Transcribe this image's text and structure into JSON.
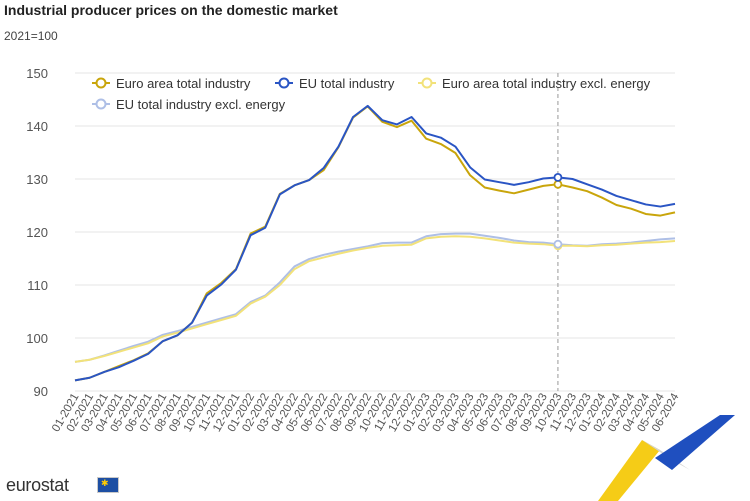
{
  "colors": {
    "euro_area_total": "#c9a50b",
    "eu_total": "#2a55c4",
    "euro_area_excl": "#f2e27a",
    "eu_excl": "#aebfe6",
    "grid": "#e6e6e6",
    "axis_text": "#555555",
    "brand_blue": "#1d4fa3",
    "brand_yellow": "#f5cc17"
  },
  "branding": {
    "logo_text": "eurostat",
    "flag_icon": "eu-flag-icon"
  },
  "chart_data": {
    "type": "line",
    "title": "Industrial producer prices on the domestic market",
    "subtitle": "2021=100",
    "xlabel": "",
    "ylabel": "",
    "ylim": [
      90,
      150
    ],
    "yticks": [
      90,
      100,
      110,
      120,
      130,
      140,
      150
    ],
    "grid": true,
    "legend_position": "top-left",
    "highlight_category": "10-2023",
    "categories": [
      "01-2021",
      "02-2021",
      "03-2021",
      "04-2021",
      "05-2021",
      "06-2021",
      "07-2021",
      "08-2021",
      "09-2021",
      "10-2021",
      "11-2021",
      "12-2021",
      "01-2022",
      "02-2022",
      "03-2022",
      "04-2022",
      "05-2022",
      "06-2022",
      "07-2022",
      "08-2022",
      "09-2022",
      "10-2022",
      "11-2022",
      "12-2022",
      "01-2023",
      "02-2023",
      "03-2023",
      "04-2023",
      "05-2023",
      "06-2023",
      "07-2023",
      "08-2023",
      "09-2023",
      "10-2023",
      "11-2023",
      "12-2023",
      "01-2024",
      "02-2024",
      "03-2024",
      "04-2024",
      "05-2024",
      "06-2024"
    ],
    "series": [
      {
        "name": "Euro area total industry",
        "color": "#c9a50b",
        "values": [
          92.0,
          92.5,
          93.6,
          94.7,
          95.8,
          97.1,
          99.4,
          100.5,
          102.9,
          108.4,
          110.4,
          113.0,
          119.7,
          121.0,
          127.2,
          128.8,
          129.8,
          131.7,
          136.0,
          141.6,
          143.7,
          140.8,
          139.8,
          141.0,
          137.6,
          136.6,
          134.9,
          130.7,
          128.4,
          127.8,
          127.3,
          128.0,
          128.7,
          129.0,
          128.4,
          127.7,
          126.5,
          125.1,
          124.4,
          123.4,
          123.1,
          123.7
        ]
      },
      {
        "name": "EU total industry",
        "color": "#2a55c4",
        "values": [
          92.0,
          92.5,
          93.6,
          94.5,
          95.7,
          97.0,
          99.4,
          100.5,
          102.9,
          108.0,
          110.1,
          112.9,
          119.4,
          120.8,
          127.1,
          128.8,
          129.8,
          132.1,
          136.1,
          141.7,
          143.8,
          141.1,
          140.3,
          141.7,
          138.6,
          137.8,
          136.1,
          132.2,
          129.9,
          129.4,
          128.9,
          129.4,
          130.1,
          130.3,
          130.0,
          129.0,
          128.0,
          126.8,
          126.0,
          125.2,
          124.8,
          125.3
        ]
      },
      {
        "name": "Euro area total industry excl. energy",
        "color": "#f2e27a",
        "values": [
          95.5,
          95.9,
          96.6,
          97.4,
          98.2,
          99.0,
          100.3,
          101.0,
          101.8,
          102.6,
          103.4,
          104.2,
          106.5,
          107.8,
          110.0,
          113.0,
          114.5,
          115.2,
          115.9,
          116.5,
          117.0,
          117.4,
          117.5,
          117.6,
          118.8,
          119.1,
          119.2,
          119.1,
          118.8,
          118.4,
          118.0,
          117.8,
          117.7,
          117.4,
          117.4,
          117.3,
          117.5,
          117.6,
          117.8,
          118.0,
          118.1,
          118.3
        ]
      },
      {
        "name": "EU total industry excl. energy",
        "color": "#aebfe6",
        "values": [
          95.5,
          95.9,
          96.7,
          97.6,
          98.5,
          99.3,
          100.6,
          101.3,
          102.1,
          102.9,
          103.7,
          104.5,
          106.8,
          108.0,
          110.5,
          113.5,
          114.9,
          115.7,
          116.3,
          116.8,
          117.3,
          117.9,
          118.0,
          118.0,
          119.2,
          119.6,
          119.7,
          119.7,
          119.3,
          118.9,
          118.4,
          118.1,
          118.0,
          117.7,
          117.5,
          117.4,
          117.7,
          117.8,
          118.0,
          118.3,
          118.6,
          118.8
        ]
      }
    ]
  }
}
